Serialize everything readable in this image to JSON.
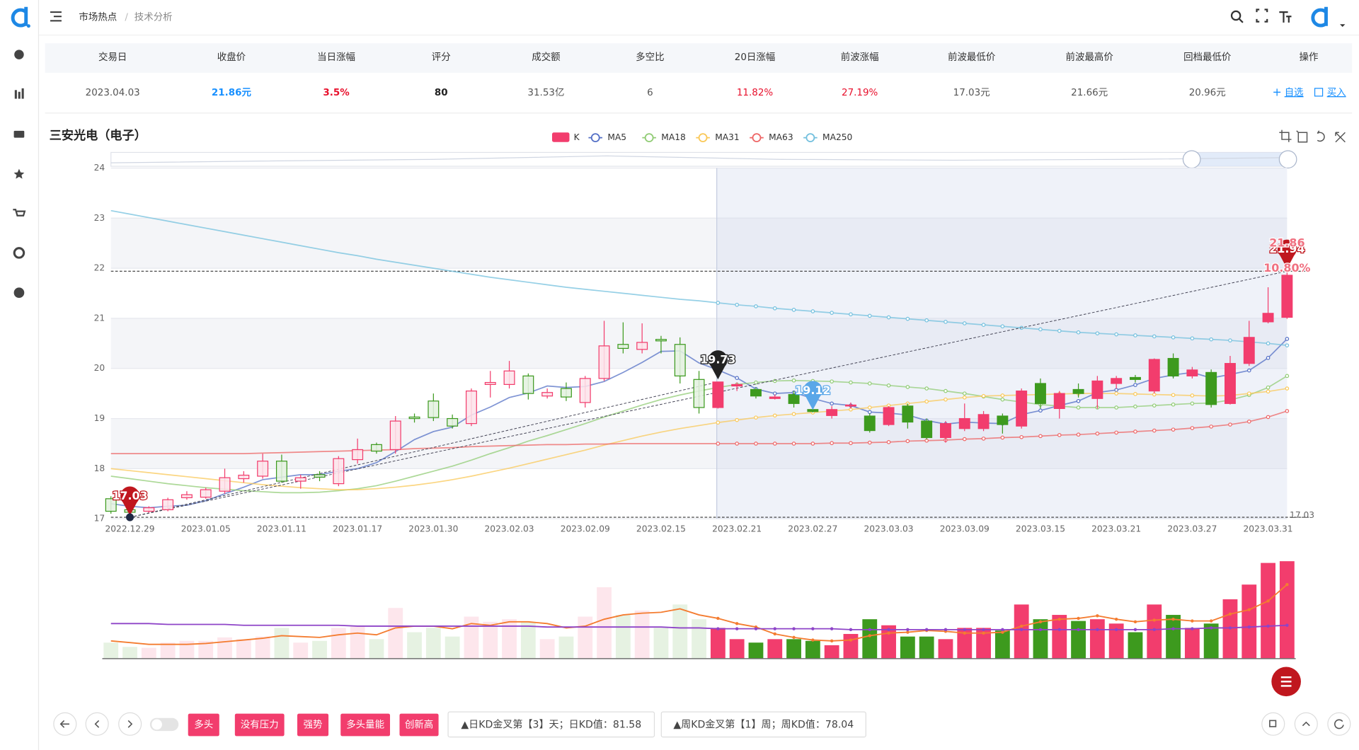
{
  "header": {
    "breadcrumb": [
      "市场热点",
      "技术分析"
    ]
  },
  "table": {
    "columns": [
      "交易日",
      "收盘价",
      "当日涨幅",
      "评分",
      "成交额",
      "多空比",
      "20日涨幅",
      "前波涨幅",
      "前波最低价",
      "前波最高价",
      "回档最低价",
      "操作"
    ],
    "rows": [
      [
        "2023.04.03",
        "21.86元",
        "3.5%",
        "80",
        "31.53亿",
        "6",
        "11.82%",
        "27.19%",
        "17.03元",
        "21.66元",
        "20.96元"
      ]
    ],
    "actions": [
      "自选",
      "买入"
    ]
  },
  "chart_data": {
    "type": "candlestick",
    "title": "三安光电（电子）",
    "ylim": [
      17,
      24
    ],
    "yticks": [
      17,
      18,
      19,
      20,
      21,
      22,
      23,
      24
    ],
    "grid": true,
    "categories": [
      null,
      "2022.12.29",
      null,
      null,
      null,
      "2023.01.05",
      null,
      null,
      null,
      "2023.01.11",
      null,
      null,
      null,
      "2023.01.17",
      null,
      null,
      null,
      "2023.01.30",
      null,
      null,
      null,
      "2023.02.03",
      null,
      null,
      null,
      "2023.02.09",
      null,
      null,
      null,
      "2023.02.15",
      null,
      null,
      null,
      "2023.02.21",
      null,
      null,
      null,
      "2023.02.27",
      null,
      null,
      null,
      "2023.03.03",
      null,
      null,
      null,
      "2023.03.09",
      null,
      null,
      null,
      "2023.03.15",
      null,
      null,
      null,
      "2023.03.21",
      null,
      null,
      null,
      "2023.03.27",
      null,
      null,
      null,
      "2023.03.31",
      null
    ],
    "candles": {
      "name": "K",
      "up_color": "#f23d6d",
      "down_color": "#3d9a1e",
      "open": [
        17.4,
        17.18,
        17.15,
        17.18,
        17.42,
        17.43,
        17.55,
        17.8,
        17.85,
        18.15,
        17.75,
        17.88,
        17.7,
        18.18,
        18.48,
        18.38,
        19.03,
        19.35,
        19.0,
        18.9,
        19.68,
        19.68,
        19.85,
        19.45,
        19.6,
        19.32,
        19.8,
        20.48,
        20.38,
        20.58,
        20.48,
        19.78,
        19.22,
        19.65,
        19.58,
        19.4,
        19.48,
        19.18,
        19.06,
        19.25,
        19.05,
        18.88,
        19.25,
        18.95,
        18.62,
        18.8,
        18.8,
        19.05,
        18.85,
        19.7,
        19.2,
        19.58,
        19.4,
        19.7,
        19.82,
        19.55,
        20.2,
        19.85,
        19.92,
        19.3,
        20.1,
        20.93,
        21.02
      ],
      "close": [
        17.15,
        17.13,
        17.22,
        17.38,
        17.48,
        17.58,
        17.82,
        17.87,
        18.15,
        17.75,
        17.82,
        17.83,
        18.2,
        18.38,
        18.35,
        18.95,
        19.0,
        19.02,
        18.85,
        19.55,
        19.72,
        19.95,
        19.5,
        19.52,
        19.43,
        19.8,
        20.45,
        20.4,
        20.52,
        20.55,
        19.85,
        19.22,
        19.73,
        19.68,
        19.45,
        19.43,
        19.3,
        19.14,
        19.18,
        19.27,
        18.76,
        19.22,
        18.93,
        18.62,
        18.9,
        19.0,
        19.08,
        18.88,
        19.55,
        19.3,
        19.5,
        19.5,
        19.75,
        19.8,
        19.78,
        20.18,
        19.85,
        19.97,
        19.28,
        20.1,
        20.62,
        21.1,
        21.86
      ],
      "high": [
        17.45,
        17.2,
        17.25,
        17.42,
        17.55,
        17.62,
        18.0,
        17.95,
        18.3,
        18.28,
        17.88,
        17.95,
        18.25,
        18.6,
        18.52,
        19.05,
        19.1,
        19.5,
        19.08,
        19.6,
        19.95,
        20.15,
        19.9,
        19.6,
        19.72,
        19.85,
        20.95,
        20.92,
        20.9,
        20.65,
        20.62,
        19.95,
        19.73,
        19.72,
        19.62,
        19.48,
        19.55,
        19.25,
        19.25,
        19.32,
        19.1,
        19.25,
        19.3,
        19.0,
        18.95,
        19.3,
        19.15,
        19.1,
        19.6,
        19.8,
        19.55,
        19.7,
        19.85,
        19.85,
        19.87,
        20.2,
        20.3,
        20.03,
        19.98,
        20.25,
        20.95,
        21.62,
        21.94
      ],
      "low": [
        17.1,
        17.03,
        17.12,
        17.15,
        17.38,
        17.4,
        17.5,
        17.72,
        17.8,
        17.72,
        17.6,
        17.75,
        17.65,
        18.1,
        18.3,
        18.3,
        18.92,
        18.95,
        18.8,
        18.85,
        19.42,
        19.6,
        19.38,
        19.4,
        19.35,
        19.22,
        19.75,
        20.3,
        20.3,
        20.3,
        19.7,
        19.1,
        19.2,
        19.55,
        19.4,
        19.38,
        19.22,
        19.12,
        19.0,
        19.2,
        18.72,
        18.85,
        18.8,
        18.58,
        18.52,
        18.75,
        18.75,
        18.7,
        18.8,
        19.2,
        19.0,
        19.42,
        19.2,
        19.6,
        19.72,
        19.5,
        19.8,
        19.8,
        19.22,
        19.28,
        20.05,
        20.9,
        20.99
      ]
    },
    "series": [
      {
        "name": "MA5",
        "color": "#5470c6",
        "values": [
          17.3,
          17.25,
          17.22,
          17.25,
          17.27,
          17.36,
          17.5,
          17.63,
          17.78,
          17.83,
          17.88,
          17.88,
          17.95,
          18.0,
          18.12,
          18.34,
          18.58,
          18.74,
          18.83,
          19.07,
          19.23,
          19.42,
          19.51,
          19.65,
          19.62,
          19.64,
          19.74,
          19.92,
          20.12,
          20.34,
          20.35,
          20.11,
          19.97,
          19.81,
          19.59,
          19.5,
          19.52,
          19.4,
          19.3,
          19.26,
          19.13,
          19.11,
          19.07,
          18.96,
          18.89,
          18.93,
          18.91,
          18.9,
          19.08,
          19.16,
          19.26,
          19.35,
          19.52,
          19.57,
          19.67,
          19.8,
          19.87,
          19.92,
          19.81,
          19.88,
          19.96,
          20.21,
          20.59
        ]
      },
      {
        "name": "MA18",
        "color": "#91cc75",
        "values": [
          17.85,
          17.8,
          17.75,
          17.7,
          17.66,
          17.62,
          17.59,
          17.56,
          17.54,
          17.52,
          17.52,
          17.53,
          17.56,
          17.6,
          17.66,
          17.75,
          17.85,
          17.95,
          18.05,
          18.17,
          18.3,
          18.42,
          18.55,
          18.66,
          18.78,
          18.9,
          19.03,
          19.15,
          19.27,
          19.38,
          19.47,
          19.55,
          19.62,
          19.68,
          19.72,
          19.75,
          19.76,
          19.75,
          19.74,
          19.72,
          19.7,
          19.66,
          19.63,
          19.6,
          19.55,
          19.5,
          19.44,
          19.38,
          19.33,
          19.28,
          19.25,
          19.22,
          19.22,
          19.22,
          19.24,
          19.26,
          19.28,
          19.3,
          19.31,
          19.37,
          19.47,
          19.62,
          19.85
        ]
      },
      {
        "name": "MA31",
        "color": "#fac858",
        "values": [
          18.0,
          17.96,
          17.92,
          17.88,
          17.84,
          17.8,
          17.76,
          17.72,
          17.68,
          17.65,
          17.62,
          17.6,
          17.58,
          17.58,
          17.6,
          17.63,
          17.67,
          17.72,
          17.78,
          17.85,
          17.93,
          18.01,
          18.1,
          18.19,
          18.28,
          18.37,
          18.47,
          18.56,
          18.65,
          18.73,
          18.8,
          18.86,
          18.92,
          18.97,
          19.02,
          19.06,
          19.09,
          19.12,
          19.15,
          19.18,
          19.22,
          19.26,
          19.3,
          19.34,
          19.38,
          19.42,
          19.45,
          19.46,
          19.47,
          19.48,
          19.49,
          19.5,
          19.5,
          19.5,
          19.49,
          19.48,
          19.47,
          19.46,
          19.45,
          19.46,
          19.5,
          19.54,
          19.6
        ]
      },
      {
        "name": "MA63",
        "color": "#ee6666",
        "values": [
          18.3,
          18.3,
          18.3,
          18.3,
          18.3,
          18.3,
          18.3,
          18.3,
          18.31,
          18.32,
          18.33,
          18.34,
          18.35,
          18.36,
          18.37,
          18.38,
          18.4,
          18.41,
          18.42,
          18.44,
          18.45,
          18.46,
          18.47,
          18.48,
          18.48,
          18.49,
          18.49,
          18.5,
          18.5,
          18.5,
          18.5,
          18.5,
          18.5,
          18.5,
          18.5,
          18.5,
          18.5,
          18.5,
          18.51,
          18.51,
          18.52,
          18.53,
          18.55,
          18.56,
          18.57,
          18.59,
          18.6,
          18.62,
          18.63,
          18.65,
          18.67,
          18.68,
          18.7,
          18.72,
          18.74,
          18.76,
          18.78,
          18.81,
          18.84,
          18.88,
          18.94,
          19.03,
          19.15
        ]
      },
      {
        "name": "MA250",
        "color": "#73c0de",
        "values": [
          23.15,
          23.08,
          23.01,
          22.94,
          22.87,
          22.8,
          22.73,
          22.66,
          22.59,
          22.52,
          22.45,
          22.38,
          22.31,
          22.25,
          22.18,
          22.12,
          22.06,
          22.0,
          21.94,
          21.88,
          21.82,
          21.77,
          21.72,
          21.67,
          21.62,
          21.58,
          21.54,
          21.5,
          21.46,
          21.42,
          21.38,
          21.35,
          21.31,
          21.27,
          21.24,
          21.2,
          21.17,
          21.14,
          21.11,
          21.08,
          21.05,
          21.02,
          20.99,
          20.96,
          20.93,
          20.9,
          20.87,
          20.84,
          20.81,
          20.78,
          20.75,
          20.72,
          20.7,
          20.68,
          20.66,
          20.64,
          20.62,
          20.6,
          20.58,
          20.56,
          20.53,
          20.5,
          20.46
        ]
      }
    ],
    "markers": [
      {
        "label": "17.03",
        "value": 17.03,
        "kind": "low",
        "color": "#c0171e"
      },
      {
        "label": "19.73",
        "value": 19.73,
        "kind": "high",
        "color": "#222222"
      },
      {
        "label": "19.12",
        "value": 19.12,
        "kind": "low",
        "color": "#5aa7e8"
      },
      {
        "label": "21.94",
        "value": 21.94,
        "kind": "high",
        "color": "#c0171e"
      }
    ],
    "end_notes": [
      "21.86",
      "10.80%"
    ],
    "ref_lines": [
      {
        "value": 21.94
      },
      {
        "value": 17.03,
        "label": "17.03"
      }
    ],
    "trend_lines": [
      {
        "from": {
          "kind": "low",
          "value": 17.03
        },
        "to": {
          "kind": "high",
          "value": 21.94
        }
      },
      {
        "from": {
          "kind": "low",
          "value": 17.03
        },
        "to": {
          "kind": "high",
          "value": 19.73
        }
      }
    ],
    "volume": {
      "values": [
        18,
        13,
        12,
        18,
        20,
        20,
        24,
        22,
        25,
        35,
        18,
        20,
        35,
        37,
        22,
        58,
        30,
        35,
        25,
        48,
        42,
        45,
        42,
        22,
        25,
        48,
        82,
        50,
        55,
        35,
        62,
        45,
        35,
        22,
        18,
        22,
        22,
        20,
        15,
        28,
        45,
        38,
        25,
        25,
        22,
        35,
        35,
        32,
        62,
        45,
        50,
        43,
        45,
        40,
        30,
        62,
        50,
        35,
        40,
        68,
        85,
        110,
        112
      ],
      "ma_series": [
        {
          "color": "#f47c30",
          "values": [
            20,
            18,
            16,
            16,
            16,
            17,
            19,
            21,
            23,
            26,
            25,
            24,
            27,
            29,
            27,
            35,
            37,
            37,
            34,
            40,
            38,
            42,
            42,
            40,
            35,
            37,
            45,
            50,
            52,
            53,
            57,
            50,
            46,
            40,
            36,
            28,
            24,
            21,
            20,
            21,
            26,
            29,
            30,
            32,
            31,
            29,
            29,
            30,
            37,
            42,
            45,
            46,
            49,
            45,
            42,
            44,
            45,
            43,
            43,
            51,
            56,
            66,
            85
          ]
        },
        {
          "color": "#8e44c8",
          "values": [
            40,
            40,
            40,
            39,
            39,
            39,
            39,
            38,
            38,
            38,
            38,
            38,
            38,
            37,
            37,
            37,
            37,
            37,
            37,
            37,
            37,
            37,
            37,
            36,
            36,
            36,
            36,
            36,
            36,
            36,
            35,
            35,
            34,
            34,
            34,
            34,
            34,
            34,
            34,
            33,
            33,
            33,
            33,
            33,
            33,
            33,
            33,
            33,
            33,
            33,
            33,
            33,
            33,
            33,
            33,
            33,
            34,
            34,
            35,
            35,
            36,
            37,
            38
          ]
        }
      ]
    }
  },
  "signals": [
    "多头",
    "没有压力",
    "强势",
    "多头量能",
    "创新高"
  ],
  "indicators": [
    "▲日KD金叉第【3】天；日KD值：81.58",
    "▲周KD金叉第【1】周；周KD值：78.04"
  ]
}
